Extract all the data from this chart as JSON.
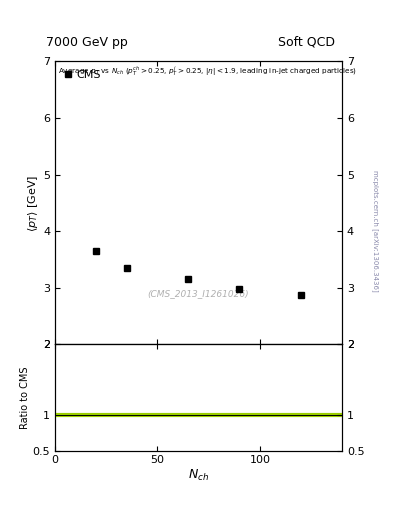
{
  "title_left": "7000 GeV pp",
  "title_right": "Soft QCD",
  "cms_label": "CMS",
  "cms_x": [
    20,
    35,
    65,
    90,
    120
  ],
  "cms_y": [
    3.65,
    3.35,
    3.15,
    2.98,
    2.88
  ],
  "ylabel_ratio": "Ratio to CMS",
  "xlim": [
    0,
    140
  ],
  "ylim_main": [
    2.0,
    7.0
  ],
  "ylim_ratio": [
    0.5,
    2.0
  ],
  "ratio_line_y": 1.0,
  "watermark": "(CMS_2013_I1261026)",
  "right_label": "mcplots.cern.ch [arXiv:1306.3436]",
  "data_color": "#000000",
  "ratio_line_color": "#99cc00",
  "background_color": "#ffffff",
  "watermark_color": "#b0b0b0",
  "right_label_color": "#8888aa",
  "yticks_main": [
    2,
    3,
    4,
    5,
    6,
    7
  ],
  "ytick_labels_main": [
    "2",
    "3",
    "4",
    "5",
    "6",
    "7"
  ],
  "xticks": [
    0,
    50,
    100
  ],
  "xtick_labels": [
    "0",
    "50",
    "100"
  ],
  "yticks_ratio": [
    0.5,
    1.0,
    2.0
  ],
  "ytick_labels_ratio": [
    "0.5",
    "1",
    "2"
  ]
}
